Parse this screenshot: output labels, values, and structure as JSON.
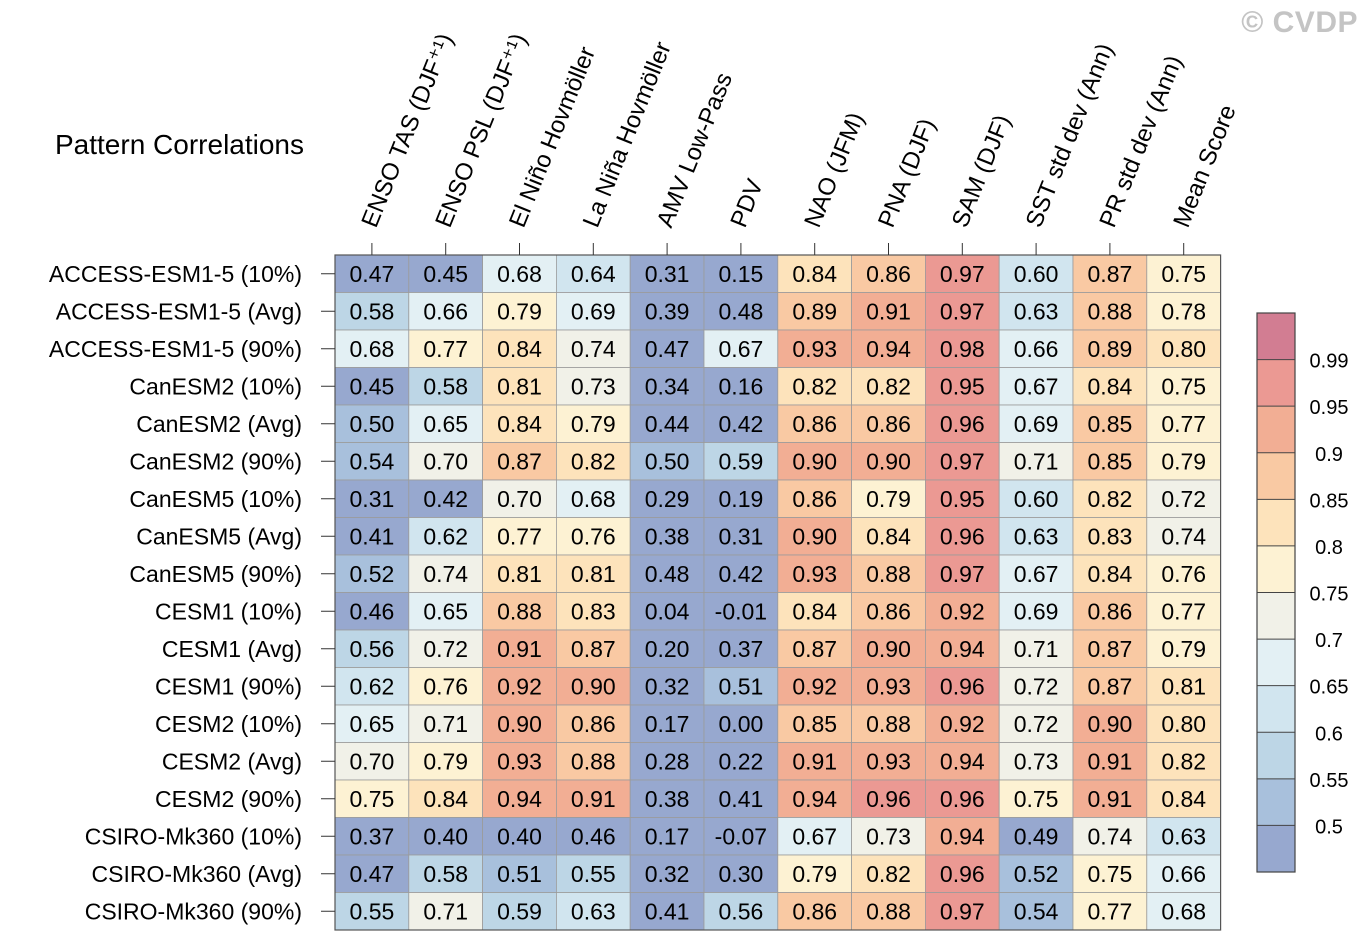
{
  "watermark": "© CVDP",
  "chart_data": {
    "type": "heatmap",
    "title": "Pattern Correlations",
    "columns": [
      "ENSO TAS (DJF⁺¹)",
      "ENSO PSL (DJF⁺¹)",
      "El Niño Hovmöller",
      "La Niña Hovmöller",
      "AMV Low-Pass",
      "PDV",
      "NAO (JFM)",
      "PNA (DJF)",
      "SAM (DJF)",
      "SST std dev (Ann)",
      "PR std dev (Ann)",
      "Mean Score"
    ],
    "rows": [
      "ACCESS-ESM1-5 (10%)",
      "ACCESS-ESM1-5 (Avg)",
      "ACCESS-ESM1-5 (90%)",
      "CanESM2 (10%)",
      "CanESM2 (Avg)",
      "CanESM2 (90%)",
      "CanESM5 (10%)",
      "CanESM5 (Avg)",
      "CanESM5 (90%)",
      "CESM1 (10%)",
      "CESM1 (Avg)",
      "CESM1 (90%)",
      "CESM2 (10%)",
      "CESM2 (Avg)",
      "CESM2 (90%)",
      "CSIRO-Mk360 (10%)",
      "CSIRO-Mk360 (Avg)",
      "CSIRO-Mk360 (90%)"
    ],
    "values": [
      [
        "0.47",
        "0.45",
        "0.68",
        "0.64",
        "0.31",
        "0.15",
        "0.84",
        "0.86",
        "0.97",
        "0.60",
        "0.87",
        "0.75"
      ],
      [
        "0.58",
        "0.66",
        "0.79",
        "0.69",
        "0.39",
        "0.48",
        "0.89",
        "0.91",
        "0.97",
        "0.63",
        "0.88",
        "0.78"
      ],
      [
        "0.68",
        "0.77",
        "0.84",
        "0.74",
        "0.47",
        "0.67",
        "0.93",
        "0.94",
        "0.98",
        "0.66",
        "0.89",
        "0.80"
      ],
      [
        "0.45",
        "0.58",
        "0.81",
        "0.73",
        "0.34",
        "0.16",
        "0.82",
        "0.82",
        "0.95",
        "0.67",
        "0.84",
        "0.75"
      ],
      [
        "0.50",
        "0.65",
        "0.84",
        "0.79",
        "0.44",
        "0.42",
        "0.86",
        "0.86",
        "0.96",
        "0.69",
        "0.85",
        "0.77"
      ],
      [
        "0.54",
        "0.70",
        "0.87",
        "0.82",
        "0.50",
        "0.59",
        "0.90",
        "0.90",
        "0.97",
        "0.71",
        "0.85",
        "0.79"
      ],
      [
        "0.31",
        "0.42",
        "0.70",
        "0.68",
        "0.29",
        "0.19",
        "0.86",
        "0.79",
        "0.95",
        "0.60",
        "0.82",
        "0.72"
      ],
      [
        "0.41",
        "0.62",
        "0.77",
        "0.76",
        "0.38",
        "0.31",
        "0.90",
        "0.84",
        "0.96",
        "0.63",
        "0.83",
        "0.74"
      ],
      [
        "0.52",
        "0.74",
        "0.81",
        "0.81",
        "0.48",
        "0.42",
        "0.93",
        "0.88",
        "0.97",
        "0.67",
        "0.84",
        "0.76"
      ],
      [
        "0.46",
        "0.65",
        "0.88",
        "0.83",
        "0.04",
        "-0.01",
        "0.84",
        "0.86",
        "0.92",
        "0.69",
        "0.86",
        "0.77"
      ],
      [
        "0.56",
        "0.72",
        "0.91",
        "0.87",
        "0.20",
        "0.37",
        "0.87",
        "0.90",
        "0.94",
        "0.71",
        "0.87",
        "0.79"
      ],
      [
        "0.62",
        "0.76",
        "0.92",
        "0.90",
        "0.32",
        "0.51",
        "0.92",
        "0.93",
        "0.96",
        "0.72",
        "0.87",
        "0.81"
      ],
      [
        "0.65",
        "0.71",
        "0.90",
        "0.86",
        "0.17",
        "0.00",
        "0.85",
        "0.88",
        "0.92",
        "0.72",
        "0.90",
        "0.80"
      ],
      [
        "0.70",
        "0.79",
        "0.93",
        "0.88",
        "0.28",
        "0.22",
        "0.91",
        "0.93",
        "0.94",
        "0.73",
        "0.91",
        "0.82"
      ],
      [
        "0.75",
        "0.84",
        "0.94",
        "0.91",
        "0.38",
        "0.41",
        "0.94",
        "0.96",
        "0.96",
        "0.75",
        "0.91",
        "0.84"
      ],
      [
        "0.37",
        "0.40",
        "0.40",
        "0.46",
        "0.17",
        "-0.07",
        "0.67",
        "0.73",
        "0.94",
        "0.49",
        "0.74",
        "0.63"
      ],
      [
        "0.47",
        "0.58",
        "0.51",
        "0.55",
        "0.32",
        "0.30",
        "0.79",
        "0.82",
        "0.96",
        "0.52",
        "0.75",
        "0.66"
      ],
      [
        "0.55",
        "0.71",
        "0.59",
        "0.63",
        "0.41",
        "0.56",
        "0.86",
        "0.88",
        "0.97",
        "0.54",
        "0.77",
        "0.68"
      ]
    ],
    "colorbar": {
      "levels": [
        0.5,
        0.55,
        0.6,
        0.65,
        0.7,
        0.75,
        0.8,
        0.85,
        0.9,
        0.95,
        0.99
      ],
      "tick_labels": [
        "0.5",
        "0.55",
        "0.6",
        "0.65",
        "0.7",
        "0.75",
        "0.8",
        "0.85",
        "0.9",
        "0.95",
        "0.99"
      ],
      "colors": [
        "#97a8cf",
        "#a8c0dc",
        "#bdd6e6",
        "#d1e5ef",
        "#e3f0f4",
        "#f1f1e8",
        "#fdf2d3",
        "#fde3bb",
        "#f9c9a3",
        "#f2ae94",
        "#eb9993",
        "#d27d92"
      ]
    }
  }
}
